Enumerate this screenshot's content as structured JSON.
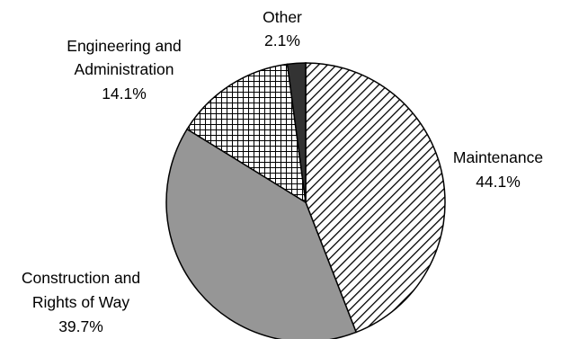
{
  "chart_data": {
    "type": "pie",
    "title": "",
    "slices": [
      {
        "label": [
          "Maintenance"
        ],
        "value": 44.1,
        "value_label": "44.1%",
        "pattern": "diagonal-stripes",
        "color": "#ffffff"
      },
      {
        "label": [
          "Construction and",
          "Rights of Way"
        ],
        "value": 39.7,
        "value_label": "39.7%",
        "pattern": "solid",
        "color": "#969696"
      },
      {
        "label": [
          "Engineering and",
          "Administration"
        ],
        "value": 14.1,
        "value_label": "14.1%",
        "pattern": "crosshatch-grid",
        "color": "#ffffff"
      },
      {
        "label": [
          "Other"
        ],
        "value": 2.1,
        "value_label": "2.1%",
        "pattern": "solid",
        "color": "#333333"
      }
    ],
    "start_angle": "12 o'clock",
    "direction": "clockwise",
    "legend": "none"
  }
}
